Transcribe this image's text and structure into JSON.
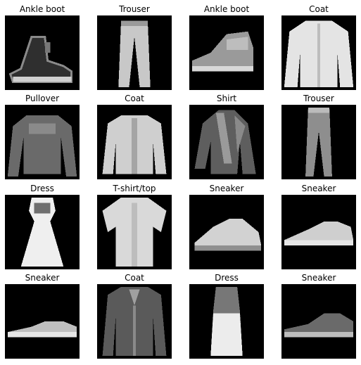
{
  "grid": {
    "items": [
      {
        "label": "Ankle boot",
        "icon": "ankle-boot"
      },
      {
        "label": "Trouser",
        "icon": "trouser"
      },
      {
        "label": "Ankle boot",
        "icon": "ankle-boot-2"
      },
      {
        "label": "Coat",
        "icon": "coat"
      },
      {
        "label": "Pullover",
        "icon": "pullover"
      },
      {
        "label": "Coat",
        "icon": "coat-2"
      },
      {
        "label": "Shirt",
        "icon": "shirt"
      },
      {
        "label": "Trouser",
        "icon": "trouser-2"
      },
      {
        "label": "Dress",
        "icon": "dress"
      },
      {
        "label": "T-shirt/top",
        "icon": "tshirt"
      },
      {
        "label": "Sneaker",
        "icon": "sneaker"
      },
      {
        "label": "Sneaker",
        "icon": "sneaker-2"
      },
      {
        "label": "Sneaker",
        "icon": "sneaker-3"
      },
      {
        "label": "Coat",
        "icon": "coat-3"
      },
      {
        "label": "Dress",
        "icon": "dress-2"
      },
      {
        "label": "Sneaker",
        "icon": "sneaker-4"
      }
    ]
  }
}
